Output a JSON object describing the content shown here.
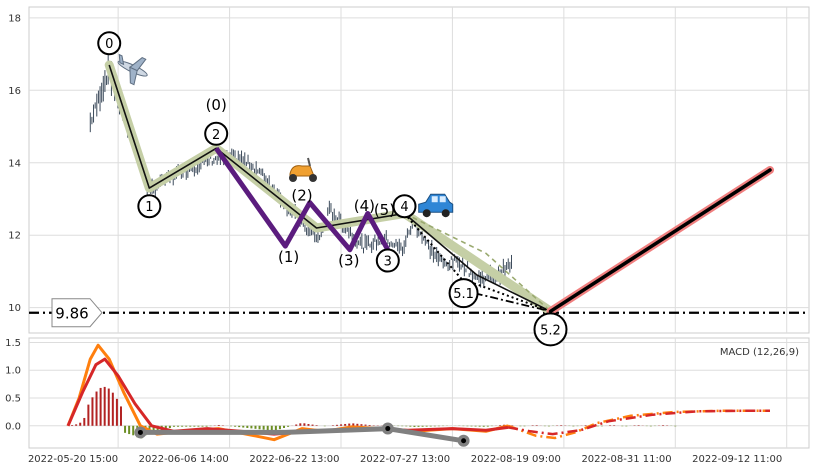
{
  "chart_data": [
    {
      "type": "line",
      "panel": "price",
      "ylim": [
        9.3,
        18.3
      ],
      "y_ticks": [
        "10",
        "12",
        "14",
        "16",
        "18"
      ],
      "grid": true,
      "price_bars": {
        "x_start": 0.55,
        "x_end": 4.33,
        "anchors": [
          [
            0.55,
            15.1
          ],
          [
            0.72,
            16.6
          ],
          [
            0.82,
            15.6
          ],
          [
            0.99,
            14.1
          ],
          [
            1.08,
            13.2
          ],
          [
            1.2,
            13.5
          ],
          [
            1.4,
            13.8
          ],
          [
            1.65,
            14.1
          ],
          [
            1.9,
            14.1
          ],
          [
            2.05,
            13.8
          ],
          [
            2.25,
            13.1
          ],
          [
            2.45,
            12.3
          ],
          [
            2.6,
            11.9
          ],
          [
            2.7,
            12.7
          ],
          [
            2.85,
            12.2
          ],
          [
            3.0,
            11.7
          ],
          [
            3.2,
            11.9
          ],
          [
            3.35,
            11.6
          ],
          [
            3.45,
            12.4
          ],
          [
            3.58,
            11.7
          ],
          [
            3.72,
            11.2
          ],
          [
            3.86,
            11.3
          ],
          [
            4.02,
            10.8
          ],
          [
            4.2,
            10.9
          ],
          [
            4.33,
            11.2
          ]
        ]
      },
      "horizontal_level": {
        "value": 9.86,
        "label": "9.86"
      },
      "wave_primary": {
        "points": [
          [
            0.72,
            16.7
          ],
          [
            1.08,
            13.3
          ],
          [
            1.68,
            14.4
          ],
          [
            2.58,
            12.2
          ],
          [
            3.37,
            12.6
          ],
          [
            4.02,
            10.9
          ],
          [
            4.68,
            9.9
          ]
        ],
        "highlight": [
          [
            0.72,
            16.7
          ],
          [
            1.08,
            13.3
          ],
          [
            1.68,
            14.4
          ],
          [
            2.58,
            12.2
          ],
          [
            3.37,
            12.6
          ],
          [
            4.68,
            9.9
          ]
        ]
      },
      "wave_sub": {
        "points": [
          [
            1.68,
            14.4
          ],
          [
            2.3,
            11.7
          ],
          [
            2.52,
            12.9
          ],
          [
            2.88,
            11.6
          ],
          [
            3.04,
            12.6
          ],
          [
            3.22,
            11.6
          ]
        ]
      },
      "wave_dotted": {
        "points": [
          [
            3.37,
            12.6
          ],
          [
            3.88,
            10.8
          ],
          [
            4.68,
            9.9
          ]
        ]
      },
      "wave_alt": {
        "points": [
          [
            3.37,
            12.6
          ],
          [
            4.1,
            11.5
          ],
          [
            4.68,
            9.9
          ]
        ]
      },
      "wave_dashdot": {
        "points": [
          [
            3.86,
            10.5
          ],
          [
            4.68,
            9.9
          ]
        ]
      },
      "projection": {
        "points": [
          [
            4.68,
            9.9
          ],
          [
            6.65,
            13.8
          ]
        ]
      },
      "circle_labels": [
        {
          "text": "0",
          "x": 0.72,
          "y": 17.3
        },
        {
          "text": "1",
          "x": 1.08,
          "y": 12.8
        },
        {
          "text": "2",
          "x": 1.68,
          "y": 14.8
        },
        {
          "text": "3",
          "x": 3.22,
          "y": 11.3
        },
        {
          "text": "4",
          "x": 3.37,
          "y": 12.8
        },
        {
          "text": "5.1",
          "x": 3.9,
          "y": 10.4
        },
        {
          "text": "5.2",
          "x": 4.68,
          "y": 9.4
        }
      ],
      "text_labels": [
        {
          "text": "(0)",
          "x": 1.68,
          "y": 15.6
        },
        {
          "text": "(2)",
          "x": 2.45,
          "y": 13.1
        },
        {
          "text": "(1)",
          "x": 2.33,
          "y": 11.4
        },
        {
          "text": "(3)",
          "x": 2.87,
          "y": 11.3
        },
        {
          "text": "(4)",
          "x": 3.01,
          "y": 12.8
        },
        {
          "text": "(5)",
          "x": 3.19,
          "y": 12.7
        }
      ],
      "icons": [
        {
          "name": "airplane-icon",
          "x": 0.93,
          "y": 16.6
        },
        {
          "name": "scooter-icon",
          "x": 2.45,
          "y": 13.8
        },
        {
          "name": "car-icon",
          "x": 3.65,
          "y": 12.8
        }
      ]
    },
    {
      "type": "line",
      "panel": "macd",
      "title": "MACD (12,26,9)",
      "ylim": [
        -0.4,
        1.58
      ],
      "y_ticks": [
        "0.0",
        "0.5",
        "1.0",
        "1.5"
      ],
      "x_ticks": [
        "2022-05-20 15:00",
        "2022-06-06 14:00",
        "2022-06-22 13:00",
        "2022-07-27 13:00",
        "2022-08-19 09:00",
        "2022-08-31 11:00",
        "2022-09-12 11:00"
      ],
      "grid": true,
      "series": [
        {
          "color": "#ff7f0e",
          "points": [
            [
              0.35,
              0.0
            ],
            [
              0.45,
              0.5
            ],
            [
              0.55,
              1.2
            ],
            [
              0.62,
              1.45
            ],
            [
              0.72,
              1.2
            ],
            [
              0.85,
              0.6
            ],
            [
              1.0,
              0.0
            ],
            [
              1.15,
              -0.15
            ],
            [
              1.4,
              -0.1
            ],
            [
              1.7,
              -0.05
            ],
            [
              1.95,
              -0.15
            ],
            [
              2.2,
              -0.25
            ],
            [
              2.45,
              -0.05
            ],
            [
              2.65,
              -0.1
            ],
            [
              2.9,
              -0.02
            ],
            [
              3.15,
              -0.05
            ],
            [
              3.45,
              -0.1
            ],
            [
              3.8,
              -0.05
            ],
            [
              4.1,
              -0.1
            ],
            [
              4.3,
              0.0
            ]
          ]
        },
        {
          "color": "#d62728",
          "points": [
            [
              0.35,
              0.0
            ],
            [
              0.48,
              0.6
            ],
            [
              0.6,
              1.1
            ],
            [
              0.68,
              1.2
            ],
            [
              0.8,
              0.9
            ],
            [
              0.95,
              0.4
            ],
            [
              1.1,
              0.0
            ],
            [
              1.3,
              -0.1
            ],
            [
              1.6,
              -0.05
            ],
            [
              1.9,
              -0.1
            ],
            [
              2.2,
              -0.15
            ],
            [
              2.5,
              -0.1
            ],
            [
              2.8,
              -0.08
            ],
            [
              3.1,
              -0.05
            ],
            [
              3.4,
              -0.08
            ],
            [
              3.8,
              -0.05
            ],
            [
              4.1,
              -0.08
            ],
            [
              4.3,
              -0.03
            ]
          ]
        }
      ],
      "dashdot_series": [
        {
          "color": "#ff7f0e",
          "points": [
            [
              4.3,
              0.0
            ],
            [
              4.55,
              -0.18
            ],
            [
              4.72,
              -0.22
            ],
            [
              4.9,
              -0.12
            ],
            [
              5.1,
              0.05
            ],
            [
              5.4,
              0.18
            ],
            [
              5.8,
              0.25
            ],
            [
              6.2,
              0.27
            ],
            [
              6.65,
              0.27
            ]
          ]
        },
        {
          "color": "#d62728",
          "points": [
            [
              4.3,
              -0.03
            ],
            [
              4.5,
              -0.1
            ],
            [
              4.7,
              -0.15
            ],
            [
              4.95,
              -0.08
            ],
            [
              5.2,
              0.08
            ],
            [
              5.6,
              0.2
            ],
            [
              6.0,
              0.26
            ],
            [
              6.4,
              0.27
            ],
            [
              6.65,
              0.27
            ]
          ]
        }
      ],
      "histogram": {
        "x_start": 0.35,
        "x_end": 5.8,
        "count": 150
      },
      "gray_line": {
        "points": [
          [
            1.0,
            -0.12
          ],
          [
            2.3,
            -0.12
          ],
          [
            3.22,
            -0.05
          ],
          [
            3.9,
            -0.27
          ]
        ]
      },
      "gray_markers": [
        [
          1.0,
          -0.12
        ],
        [
          3.22,
          -0.05
        ],
        [
          3.9,
          -0.27
        ]
      ]
    }
  ]
}
